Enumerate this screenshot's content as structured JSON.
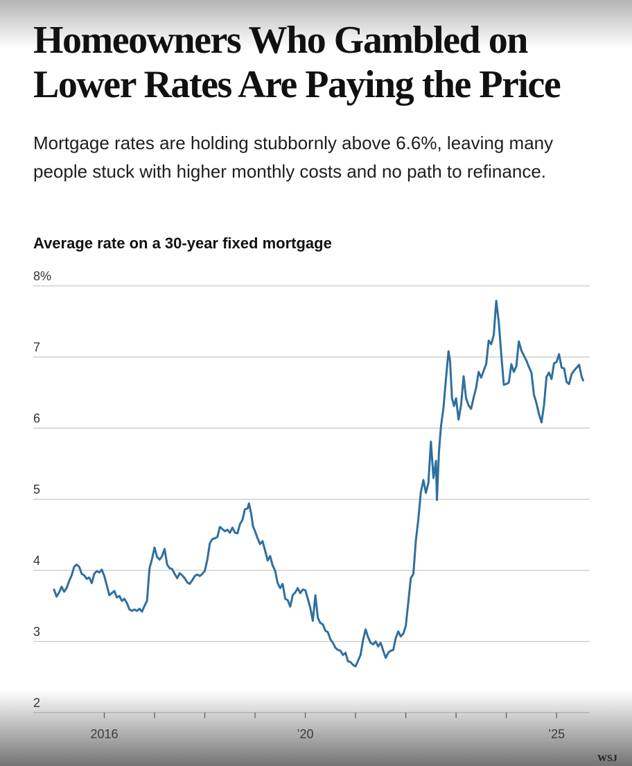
{
  "headline": "Homeowners Who Gambled on Lower Rates Are Paying the Price",
  "dek": "Mortgage rates are holding stubbornly above 6.6%, leaving many people stuck with higher monthly costs and no path to refinance.",
  "credit": "WSJ",
  "colors": {
    "line": "#2f6f9e",
    "grid": "#c8c8c8",
    "text": "#111111"
  },
  "chart_data": {
    "type": "line",
    "title": "Average rate on a 30-year fixed mortgage",
    "ylim": [
      2,
      8
    ],
    "xlim": [
      2015.0,
      2025.55
    ],
    "y_ticks": [
      2,
      3,
      4,
      5,
      6,
      7,
      8
    ],
    "y_tick_labels": [
      "2",
      "3",
      "4",
      "5",
      "6",
      "7",
      "8%"
    ],
    "x_ticks": [
      2016,
      2017,
      2018,
      2019,
      2020,
      2021,
      2022,
      2023,
      2024,
      2025
    ],
    "x_tick_labels": [
      {
        "value": 2016,
        "label": "2016"
      },
      {
        "value": 2020,
        "label": "’20"
      },
      {
        "value": 2025,
        "label": "’25"
      }
    ],
    "grid": true,
    "series": [
      {
        "points": [
          [
            2015.0,
            3.73
          ],
          [
            2015.05,
            3.63
          ],
          [
            2015.1,
            3.69
          ],
          [
            2015.15,
            3.77
          ],
          [
            2015.2,
            3.7
          ],
          [
            2015.25,
            3.75
          ],
          [
            2015.3,
            3.85
          ],
          [
            2015.35,
            3.93
          ],
          [
            2015.4,
            4.05
          ],
          [
            2015.45,
            4.08
          ],
          [
            2015.5,
            4.05
          ],
          [
            2015.55,
            3.95
          ],
          [
            2015.6,
            3.93
          ],
          [
            2015.65,
            3.88
          ],
          [
            2015.7,
            3.9
          ],
          [
            2015.75,
            3.82
          ],
          [
            2015.8,
            3.95
          ],
          [
            2015.85,
            3.99
          ],
          [
            2015.9,
            3.97
          ],
          [
            2015.95,
            4.01
          ],
          [
            2016.0,
            3.92
          ],
          [
            2016.05,
            3.79
          ],
          [
            2016.1,
            3.65
          ],
          [
            2016.15,
            3.68
          ],
          [
            2016.2,
            3.71
          ],
          [
            2016.25,
            3.62
          ],
          [
            2016.3,
            3.64
          ],
          [
            2016.35,
            3.57
          ],
          [
            2016.4,
            3.6
          ],
          [
            2016.45,
            3.54
          ],
          [
            2016.5,
            3.45
          ],
          [
            2016.55,
            3.43
          ],
          [
            2016.6,
            3.45
          ],
          [
            2016.65,
            3.43
          ],
          [
            2016.7,
            3.46
          ],
          [
            2016.75,
            3.42
          ],
          [
            2016.8,
            3.5
          ],
          [
            2016.85,
            3.57
          ],
          [
            2016.9,
            4.03
          ],
          [
            2016.95,
            4.16
          ],
          [
            2017.0,
            4.32
          ],
          [
            2017.05,
            4.19
          ],
          [
            2017.1,
            4.15
          ],
          [
            2017.15,
            4.2
          ],
          [
            2017.2,
            4.3
          ],
          [
            2017.25,
            4.08
          ],
          [
            2017.3,
            4.03
          ],
          [
            2017.35,
            4.02
          ],
          [
            2017.4,
            3.95
          ],
          [
            2017.45,
            3.89
          ],
          [
            2017.5,
            3.96
          ],
          [
            2017.55,
            3.93
          ],
          [
            2017.6,
            3.89
          ],
          [
            2017.65,
            3.83
          ],
          [
            2017.7,
            3.81
          ],
          [
            2017.75,
            3.86
          ],
          [
            2017.8,
            3.92
          ],
          [
            2017.85,
            3.94
          ],
          [
            2017.9,
            3.92
          ],
          [
            2017.95,
            3.95
          ],
          [
            2018.0,
            3.99
          ],
          [
            2018.05,
            4.15
          ],
          [
            2018.1,
            4.38
          ],
          [
            2018.15,
            4.44
          ],
          [
            2018.2,
            4.45
          ],
          [
            2018.25,
            4.47
          ],
          [
            2018.3,
            4.61
          ],
          [
            2018.35,
            4.58
          ],
          [
            2018.4,
            4.55
          ],
          [
            2018.45,
            4.57
          ],
          [
            2018.5,
            4.53
          ],
          [
            2018.55,
            4.6
          ],
          [
            2018.6,
            4.53
          ],
          [
            2018.65,
            4.52
          ],
          [
            2018.7,
            4.65
          ],
          [
            2018.75,
            4.71
          ],
          [
            2018.8,
            4.86
          ],
          [
            2018.85,
            4.87
          ],
          [
            2018.88,
            4.94
          ],
          [
            2018.92,
            4.81
          ],
          [
            2018.96,
            4.62
          ],
          [
            2019.0,
            4.55
          ],
          [
            2019.05,
            4.45
          ],
          [
            2019.1,
            4.37
          ],
          [
            2019.15,
            4.41
          ],
          [
            2019.2,
            4.28
          ],
          [
            2019.25,
            4.14
          ],
          [
            2019.3,
            4.2
          ],
          [
            2019.35,
            4.07
          ],
          [
            2019.4,
            3.99
          ],
          [
            2019.45,
            3.82
          ],
          [
            2019.5,
            3.75
          ],
          [
            2019.55,
            3.81
          ],
          [
            2019.6,
            3.6
          ],
          [
            2019.65,
            3.58
          ],
          [
            2019.7,
            3.49
          ],
          [
            2019.75,
            3.65
          ],
          [
            2019.8,
            3.69
          ],
          [
            2019.85,
            3.75
          ],
          [
            2019.9,
            3.68
          ],
          [
            2019.95,
            3.73
          ],
          [
            2020.0,
            3.72
          ],
          [
            2020.05,
            3.6
          ],
          [
            2020.1,
            3.47
          ],
          [
            2020.15,
            3.29
          ],
          [
            2020.2,
            3.65
          ],
          [
            2020.25,
            3.33
          ],
          [
            2020.3,
            3.26
          ],
          [
            2020.35,
            3.24
          ],
          [
            2020.4,
            3.15
          ],
          [
            2020.45,
            3.13
          ],
          [
            2020.5,
            3.03
          ],
          [
            2020.55,
            2.98
          ],
          [
            2020.6,
            2.91
          ],
          [
            2020.65,
            2.88
          ],
          [
            2020.7,
            2.87
          ],
          [
            2020.75,
            2.81
          ],
          [
            2020.8,
            2.84
          ],
          [
            2020.85,
            2.72
          ],
          [
            2020.9,
            2.71
          ],
          [
            2020.95,
            2.67
          ],
          [
            2021.0,
            2.65
          ],
          [
            2021.05,
            2.73
          ],
          [
            2021.1,
            2.81
          ],
          [
            2021.15,
            3.02
          ],
          [
            2021.2,
            3.17
          ],
          [
            2021.25,
            3.06
          ],
          [
            2021.3,
            2.98
          ],
          [
            2021.35,
            2.96
          ],
          [
            2021.4,
            3.0
          ],
          [
            2021.45,
            2.93
          ],
          [
            2021.5,
            2.98
          ],
          [
            2021.55,
            2.87
          ],
          [
            2021.6,
            2.77
          ],
          [
            2021.65,
            2.84
          ],
          [
            2021.7,
            2.87
          ],
          [
            2021.75,
            2.88
          ],
          [
            2021.8,
            3.05
          ],
          [
            2021.85,
            3.14
          ],
          [
            2021.9,
            3.07
          ],
          [
            2021.95,
            3.11
          ],
          [
            2022.0,
            3.22
          ],
          [
            2022.05,
            3.55
          ],
          [
            2022.1,
            3.89
          ],
          [
            2022.15,
            3.95
          ],
          [
            2022.2,
            4.42
          ],
          [
            2022.25,
            4.72
          ],
          [
            2022.3,
            5.1
          ],
          [
            2022.35,
            5.27
          ],
          [
            2022.4,
            5.09
          ],
          [
            2022.45,
            5.23
          ],
          [
            2022.5,
            5.81
          ],
          [
            2022.55,
            5.3
          ],
          [
            2022.6,
            5.54
          ],
          [
            2022.62,
            4.99
          ],
          [
            2022.66,
            5.66
          ],
          [
            2022.7,
            6.02
          ],
          [
            2022.75,
            6.29
          ],
          [
            2022.8,
            6.7
          ],
          [
            2022.85,
            7.08
          ],
          [
            2022.88,
            6.95
          ],
          [
            2022.92,
            6.42
          ],
          [
            2022.96,
            6.31
          ],
          [
            2023.0,
            6.42
          ],
          [
            2023.05,
            6.12
          ],
          [
            2023.1,
            6.32
          ],
          [
            2023.15,
            6.73
          ],
          [
            2023.2,
            6.42
          ],
          [
            2023.25,
            6.32
          ],
          [
            2023.3,
            6.27
          ],
          [
            2023.35,
            6.43
          ],
          [
            2023.4,
            6.57
          ],
          [
            2023.45,
            6.79
          ],
          [
            2023.5,
            6.71
          ],
          [
            2023.55,
            6.81
          ],
          [
            2023.6,
            6.9
          ],
          [
            2023.65,
            7.23
          ],
          [
            2023.7,
            7.18
          ],
          [
            2023.75,
            7.31
          ],
          [
            2023.8,
            7.79
          ],
          [
            2023.85,
            7.5
          ],
          [
            2023.9,
            7.03
          ],
          [
            2023.95,
            6.61
          ],
          [
            2024.0,
            6.62
          ],
          [
            2024.05,
            6.64
          ],
          [
            2024.1,
            6.9
          ],
          [
            2024.15,
            6.79
          ],
          [
            2024.2,
            6.87
          ],
          [
            2024.25,
            7.22
          ],
          [
            2024.3,
            7.09
          ],
          [
            2024.35,
            7.02
          ],
          [
            2024.4,
            6.95
          ],
          [
            2024.45,
            6.86
          ],
          [
            2024.5,
            6.78
          ],
          [
            2024.55,
            6.47
          ],
          [
            2024.6,
            6.35
          ],
          [
            2024.65,
            6.2
          ],
          [
            2024.7,
            6.08
          ],
          [
            2024.75,
            6.32
          ],
          [
            2024.8,
            6.72
          ],
          [
            2024.85,
            6.78
          ],
          [
            2024.9,
            6.69
          ],
          [
            2024.95,
            6.91
          ],
          [
            2025.0,
            6.93
          ],
          [
            2025.05,
            7.04
          ],
          [
            2025.1,
            6.85
          ],
          [
            2025.15,
            6.84
          ],
          [
            2025.2,
            6.65
          ],
          [
            2025.25,
            6.62
          ],
          [
            2025.3,
            6.76
          ],
          [
            2025.35,
            6.81
          ],
          [
            2025.4,
            6.85
          ],
          [
            2025.45,
            6.89
          ],
          [
            2025.5,
            6.72
          ],
          [
            2025.53,
            6.67
          ]
        ]
      }
    ]
  }
}
